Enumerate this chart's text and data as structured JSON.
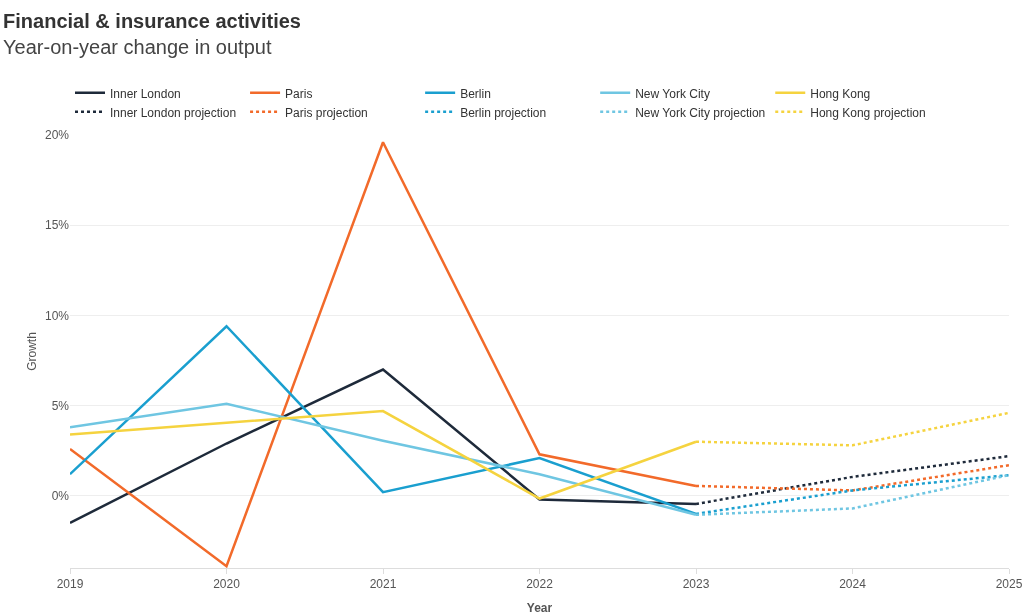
{
  "chart_data": {
    "type": "line",
    "title": "Financial & insurance activities",
    "subtitle": "Year-on-year change in output",
    "xlabel": "Year",
    "ylabel": "Growth",
    "xlim": [
      2019,
      2025
    ],
    "xticks": [
      2019,
      2020,
      2021,
      2022,
      2023,
      2024,
      2025
    ],
    "ylim": [
      -4,
      20
    ],
    "yticks": [
      {
        "value": 0,
        "label": "0%"
      },
      {
        "value": 5,
        "label": "5%"
      },
      {
        "value": 10,
        "label": "10%"
      },
      {
        "value": 15,
        "label": "15%"
      },
      {
        "value": 20,
        "label": "20%"
      }
    ],
    "grid": "y",
    "legend": "top",
    "marker": "none",
    "series": [
      {
        "name": "Inner London",
        "color": "#1e2a3a",
        "line_style": "solid",
        "x": [
          2019,
          2020,
          2021,
          2022,
          2023
        ],
        "values": [
          -1.5,
          2.9,
          7.0,
          -0.2,
          -0.45
        ]
      },
      {
        "name": "Paris",
        "color": "#f26a2a",
        "line_style": "solid",
        "x": [
          2019,
          2020,
          2021,
          2022,
          2023
        ],
        "values": [
          2.6,
          -3.9,
          19.6,
          2.3,
          0.55
        ]
      },
      {
        "name": "Berlin",
        "color": "#1a9fcf",
        "line_style": "solid",
        "x": [
          2019,
          2020,
          2021,
          2022,
          2023
        ],
        "values": [
          1.2,
          9.4,
          0.2,
          2.1,
          -1.0
        ]
      },
      {
        "name": "New York City",
        "color": "#6fc6e2",
        "line_style": "solid",
        "x": [
          2019,
          2020,
          2021,
          2022,
          2023
        ],
        "values": [
          3.8,
          5.1,
          3.05,
          1.2,
          -1.05
        ]
      },
      {
        "name": "Hong Kong",
        "color": "#f5d33f",
        "line_style": "solid",
        "x": [
          2019,
          2020,
          2021,
          2022,
          2023
        ],
        "values": [
          3.4,
          4.05,
          4.7,
          -0.15,
          3.0
        ]
      },
      {
        "name": "Inner London projection",
        "color": "#1e2a3a",
        "line_style": "dotted",
        "x": [
          2023,
          2024,
          2025
        ],
        "values": [
          -0.45,
          1.05,
          2.2
        ]
      },
      {
        "name": "Paris projection",
        "color": "#f26a2a",
        "line_style": "dotted",
        "x": [
          2023,
          2024,
          2025
        ],
        "values": [
          0.55,
          0.3,
          1.7
        ]
      },
      {
        "name": "Berlin projection",
        "color": "#1a9fcf",
        "line_style": "dotted",
        "x": [
          2023,
          2024,
          2025
        ],
        "values": [
          -1.0,
          0.3,
          1.15
        ]
      },
      {
        "name": "New York City projection",
        "color": "#6fc6e2",
        "line_style": "dotted",
        "x": [
          2023,
          2024,
          2025
        ],
        "values": [
          -1.05,
          -0.7,
          1.15
        ]
      },
      {
        "name": "Hong Kong projection",
        "color": "#f5d33f",
        "line_style": "dotted",
        "x": [
          2023,
          2024,
          2025
        ],
        "values": [
          3.0,
          2.8,
          4.6
        ]
      }
    ]
  }
}
